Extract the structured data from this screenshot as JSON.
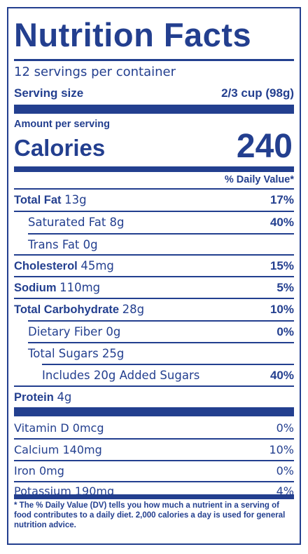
{
  "title": "Nutrition Facts",
  "servings": "12 servings per container",
  "serving_size": {
    "label": "Serving size",
    "value": "2/3 cup (98g)"
  },
  "amount_per_serving": "Amount per serving",
  "calories": {
    "label": "Calories",
    "value": "240"
  },
  "daily_value_header": "% Daily Value*",
  "nutrients": [
    {
      "name": "Total Fat",
      "amount": "13g",
      "dv": "17%"
    },
    {
      "name": "Saturated Fat 8g",
      "dv": "40%"
    },
    {
      "name": "Trans Fat 0g",
      "dv": ""
    },
    {
      "name": "Cholesterol",
      "amount": "45mg",
      "dv": "15%"
    },
    {
      "name": "Sodium",
      "amount": "110mg",
      "dv": "5%"
    },
    {
      "name": "Total Carbohydrate",
      "amount": "28g",
      "dv": "10%"
    },
    {
      "name": "Dietary Fiber 0g",
      "dv": "0%"
    },
    {
      "name": "Total Sugars 25g",
      "dv": ""
    },
    {
      "name": "Includes 20g Added Sugars",
      "dv": "40%"
    },
    {
      "name": "Protein",
      "amount": "4g",
      "dv": ""
    }
  ],
  "vitamins": [
    {
      "name": "Vitamin D 0mcg",
      "dv": "0%"
    },
    {
      "name": "Calcium 140mg",
      "dv": "10%"
    },
    {
      "name": "Iron 0mg",
      "dv": "0%"
    },
    {
      "name": "Potassium 190mg",
      "dv": "4%"
    }
  ],
  "footnote": "* The % Daily Value (DV) tells you how much a nutrient in a serving of food contributes to a daily diet. 2,000 calories a day is used for general nutrition advice.",
  "colors": {
    "primary": "#233f8f",
    "background": "#ffffff"
  }
}
